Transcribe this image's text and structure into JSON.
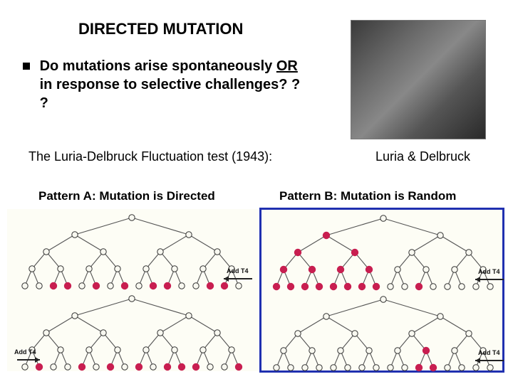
{
  "title": "DIRECTED MUTATION",
  "question": {
    "prefix": "Do mutations arise spontaneously ",
    "underlined": "OR",
    "suffix": " in response to selective challenges? ? ?"
  },
  "subtitle": "The Luria-Delbruck Fluctuation test (1943):",
  "caption": "Luria & Delbruck",
  "patternA": {
    "label": "Pattern A: Mutation is Directed"
  },
  "patternB": {
    "label": "Pattern B: Mutation is Random"
  },
  "legend": {
    "addT4": "Add T4"
  },
  "treeStyle": {
    "nodeRadius": 4.2,
    "mutantRadius": 5.2,
    "openStroke": "#333333",
    "openFill": "#f8f8f0",
    "mutantFill": "#c81e50",
    "lineStroke": "#555555",
    "lineWidth": 1.1,
    "arrowStroke": "#222222"
  },
  "layout": {
    "treeWidth": 342,
    "treeHeight": 112,
    "gen0x": 171,
    "genYs": [
      10,
      34,
      58,
      82,
      106
    ],
    "gap2": 80,
    "gap3": 40,
    "gap4": 20,
    "arrowY": 96,
    "arrowX1": 300,
    "arrowX2": 340,
    "labelX": 304,
    "labelY": 88
  },
  "trees": {
    "a1": {
      "mutants4": [
        3,
        4,
        6,
        8,
        10,
        11,
        14,
        15
      ],
      "mutants3": [],
      "mutants2": []
    },
    "a2": {
      "mutants4": [
        2,
        5,
        7,
        9,
        11,
        12,
        13,
        16
      ],
      "mutants3": [],
      "mutants2": []
    },
    "b1": {
      "mutants4": [
        1,
        2,
        3,
        4,
        5,
        6,
        7,
        8,
        11
      ],
      "mutants3": [
        1,
        2,
        3,
        4
      ],
      "mutants2": [
        1,
        2
      ],
      "mutants1": [
        1
      ]
    },
    "b2": {
      "mutants4": [
        11,
        12
      ],
      "mutants3": [
        6
      ],
      "mutants2": []
    }
  }
}
